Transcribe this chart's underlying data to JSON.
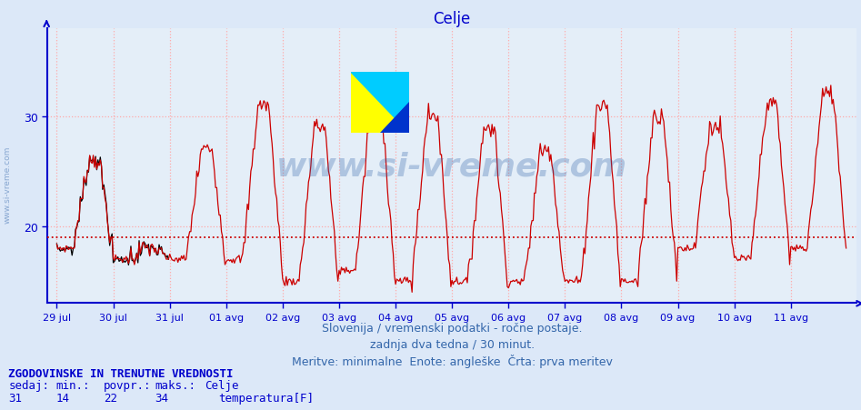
{
  "title": "Celje",
  "title_color": "#0000cc",
  "title_fontsize": 12,
  "bg_color": "#dce8f8",
  "plot_bg_color": "#e4eef8",
  "line_color": "#cc0000",
  "black_line_color": "#000000",
  "grid_color": "#ffaaaa",
  "axis_color": "#0000cc",
  "text_color": "#0000cc",
  "watermark": "www.si-vreme.com",
  "watermark_color": "#3366aa",
  "watermark_alpha": 0.3,
  "watermark_fontsize": 26,
  "xlabel_dates": [
    "29 jul",
    "30 jul",
    "31 jul",
    "01 avg",
    "02 avg",
    "03 avg",
    "04 avg",
    "05 avg",
    "06 avg",
    "07 avg",
    "08 avg",
    "09 avg",
    "10 avg",
    "11 avg"
  ],
  "yticks": [
    20,
    30
  ],
  "ylim_min": 13,
  "ylim_max": 38,
  "avg_line_y": 19.0,
  "avg_line_color": "#cc0000",
  "footer_line1": "Slovenija / vremenski podatki - ročne postaje.",
  "footer_line2": "zadnja dva tedna / 30 minut.",
  "footer_line3": "Meritve: minimalne  Enote: angleške  Črta: prva meritev",
  "footer_color": "#3366aa",
  "footer_fontsize": 9,
  "legend_title": "ZGODOVINSKE IN TRENUTNE VREDNOSTI",
  "legend_col1": "sedaj:",
  "legend_col2": "min.:",
  "legend_col3": "povpr.:",
  "legend_col4": "maks.:",
  "legend_label": "Celje",
  "legend_sedaj": "31",
  "legend_min": "14",
  "legend_povpr": "22",
  "legend_maks": "34",
  "legend_series": "temperatura[F]",
  "legend_color": "#cc0000",
  "legend_fontsize": 9,
  "n_points": 672,
  "days": 14
}
